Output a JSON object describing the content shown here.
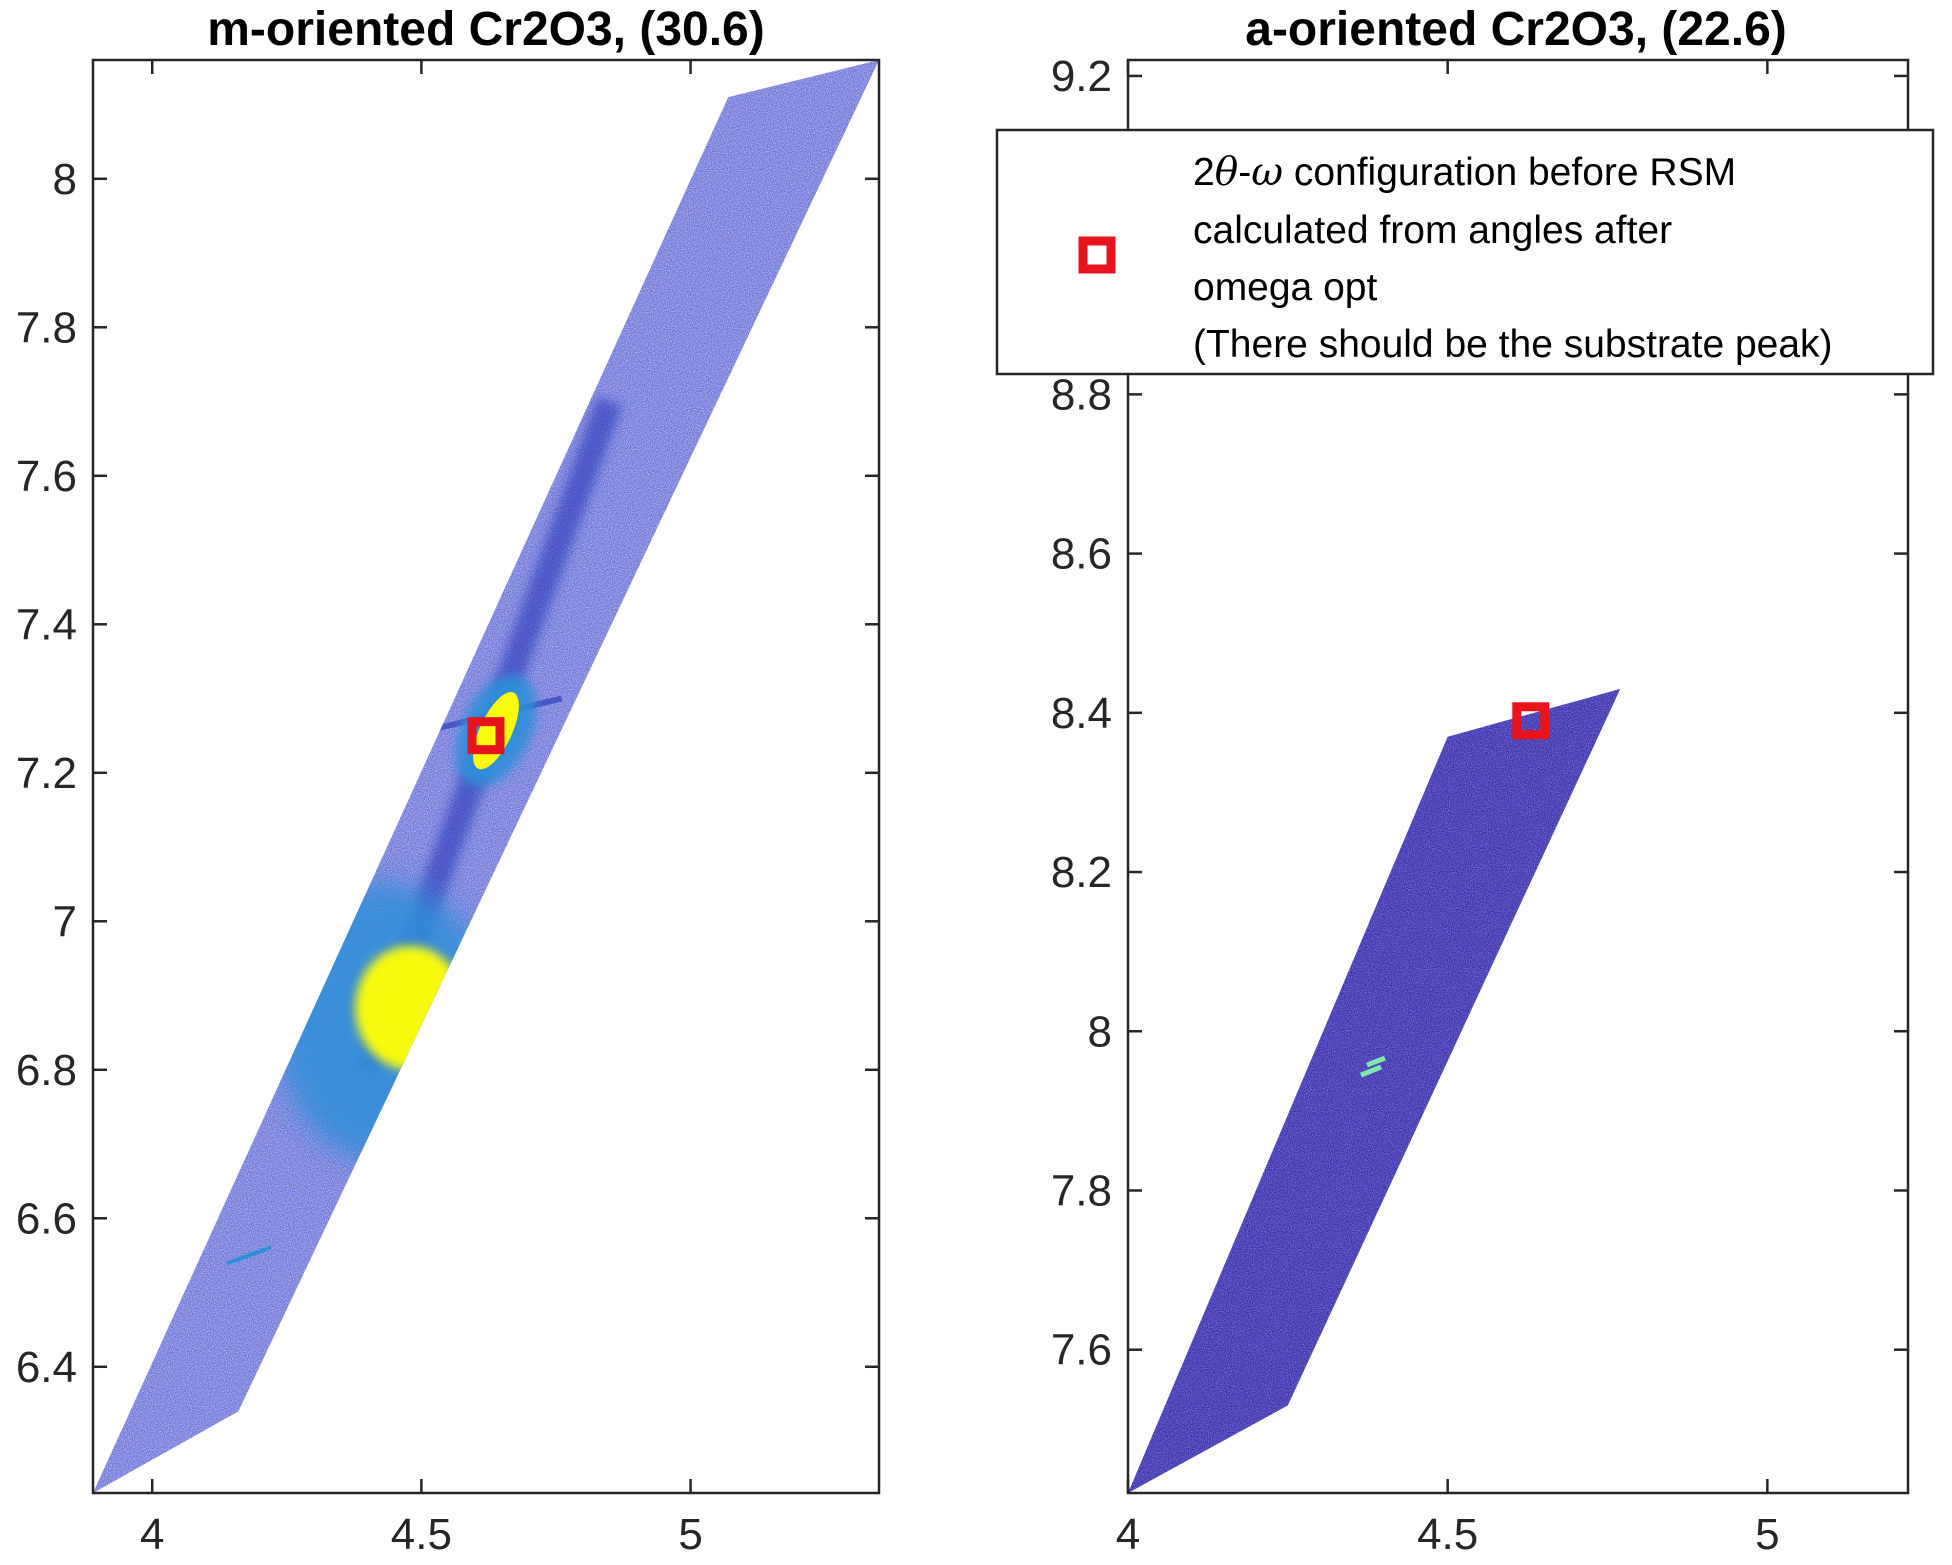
{
  "chart_data": [
    {
      "type": "heatmap",
      "title": "m-oriented Cr2O3, (30.6)",
      "xlabel": "",
      "ylabel": "",
      "xlim": [
        3.89,
        5.35
      ],
      "ylim": [
        6.23,
        8.16
      ],
      "xticks": [
        "4",
        "4.5",
        "5"
      ],
      "xtick_values": [
        4,
        4.5,
        5
      ],
      "yticks": [
        "6.4",
        "6.6",
        "6.8",
        "7",
        "7.2",
        "7.4",
        "7.6",
        "7.8",
        "8"
      ],
      "ytick_values": [
        6.4,
        6.6,
        6.8,
        7.0,
        7.2,
        7.4,
        7.6,
        7.8,
        8.0
      ],
      "grid": false,
      "colors": {
        "background": "#6a72d8",
        "low": "#3a2fb0",
        "mid": "#2e8fd8",
        "high": "#f8fa0f"
      },
      "scan_region": [
        [
          3.89,
          6.23
        ],
        [
          4.16,
          6.34
        ],
        [
          5.35,
          8.16
        ],
        [
          5.07,
          8.11
        ]
      ],
      "intensity_features": [
        {
          "name": "substrate peak",
          "x": 4.62,
          "y": 7.25,
          "level": "high"
        },
        {
          "name": "film peak",
          "x": 4.47,
          "y": 6.89,
          "level": "high"
        },
        {
          "name": "streak",
          "x": 4.18,
          "y": 6.55,
          "level": "mid"
        }
      ],
      "marker": {
        "x": 4.62,
        "y": 7.25,
        "symbol": "square",
        "color": "#e8141d"
      }
    },
    {
      "type": "heatmap",
      "title": "a-oriented Cr2O3, (22.6)",
      "xlabel": "",
      "ylabel": "",
      "xlim": [
        4.0,
        5.22
      ],
      "ylim": [
        7.42,
        9.22
      ],
      "xticks": [
        "4",
        "4.5",
        "5"
      ],
      "xtick_values": [
        4,
        4.5,
        5
      ],
      "yticks": [
        "7.6",
        "7.8",
        "8",
        "8.2",
        "8.4",
        "8.6",
        "8.8",
        "9",
        "9.2"
      ],
      "ytick_values": [
        7.6,
        7.8,
        8.0,
        8.2,
        8.4,
        8.6,
        8.8,
        9.0,
        9.2
      ],
      "grid": false,
      "colors": {
        "background": "#3a2fb0",
        "high": "#8ef0a0"
      },
      "scan_region": [
        [
          4.0,
          7.42
        ],
        [
          4.25,
          7.53
        ],
        [
          4.77,
          8.43
        ],
        [
          4.5,
          8.37
        ]
      ],
      "intensity_features": [
        {
          "name": "peak",
          "x": 4.38,
          "y": 7.95,
          "level": "mid"
        }
      ],
      "marker": {
        "x": 4.63,
        "y": 8.39,
        "symbol": "square",
        "color": "#e8141d"
      },
      "legend": {
        "placement": "top-right",
        "entries": [
          {
            "line1_prefix": "2",
            "line1_theta": "θ",
            "line1_dash": "-",
            "line1_omega": "ω",
            "line1_suffix": " configuration before RSM"
          },
          {
            "text": "calculated from angles after"
          },
          {
            "text": "omega opt"
          },
          {
            "text": "(There should be the substrate peak)"
          }
        ]
      }
    }
  ]
}
